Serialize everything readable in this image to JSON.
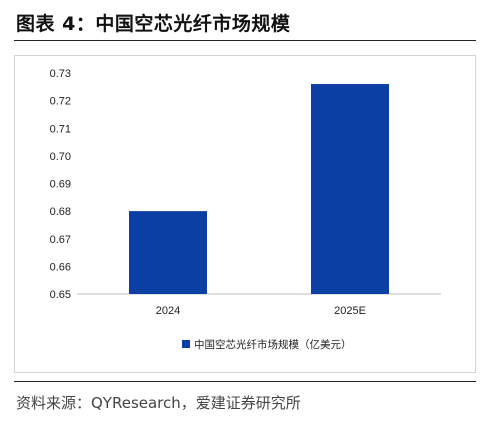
{
  "figure": {
    "title": "图表 4：中国空芯光纤市场规模",
    "source": "资料来源：QYResearch，爱建证券研究所"
  },
  "colors": {
    "bar": "#0b3fa3",
    "axis": "#bfbfbf",
    "text": "#222222"
  },
  "chart_data": {
    "type": "bar",
    "categories": [
      "2024",
      "2025E"
    ],
    "series": [
      {
        "name": "中国空芯光纤市场规模（亿美元）",
        "values": [
          0.68,
          0.726
        ]
      }
    ],
    "ylim": [
      0.65,
      0.73
    ],
    "yticks": [
      "0.65",
      "0.66",
      "0.67",
      "0.68",
      "0.69",
      "0.70",
      "0.71",
      "0.72",
      "0.73"
    ],
    "grid": false,
    "legend": "bottom"
  }
}
